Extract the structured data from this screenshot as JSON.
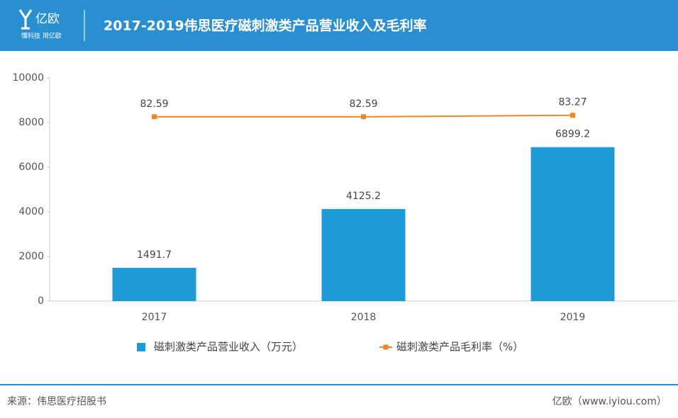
{
  "header": {
    "logo": "亿欧",
    "slogan": "懂科技 用亿欧"
  },
  "chart_data": {
    "type": "bar",
    "title": "2017-2019伟思医疗磁刺激类产品营业收入及毛利率",
    "categories": [
      "2017",
      "2018",
      "2019"
    ],
    "series": [
      {
        "name": "磁刺激类产品营业收入（万元）",
        "type": "bar",
        "color": "#1e9bd7",
        "values": [
          1491.7,
          4125.2,
          6899.2
        ]
      },
      {
        "name": "磁刺激类产品毛利率（%）",
        "type": "line",
        "color": "#f0862a",
        "values": [
          82.59,
          82.59,
          83.27
        ],
        "axis": "y2"
      }
    ],
    "ylim": [
      0,
      10000
    ],
    "yticks": [
      0,
      2000,
      4000,
      6000,
      8000,
      10000
    ],
    "y2lim": [
      0,
      100
    ]
  },
  "footer": {
    "source": "来源：伟思医疗招股书",
    "credit": "亿欧（www.iyiou.com）"
  }
}
